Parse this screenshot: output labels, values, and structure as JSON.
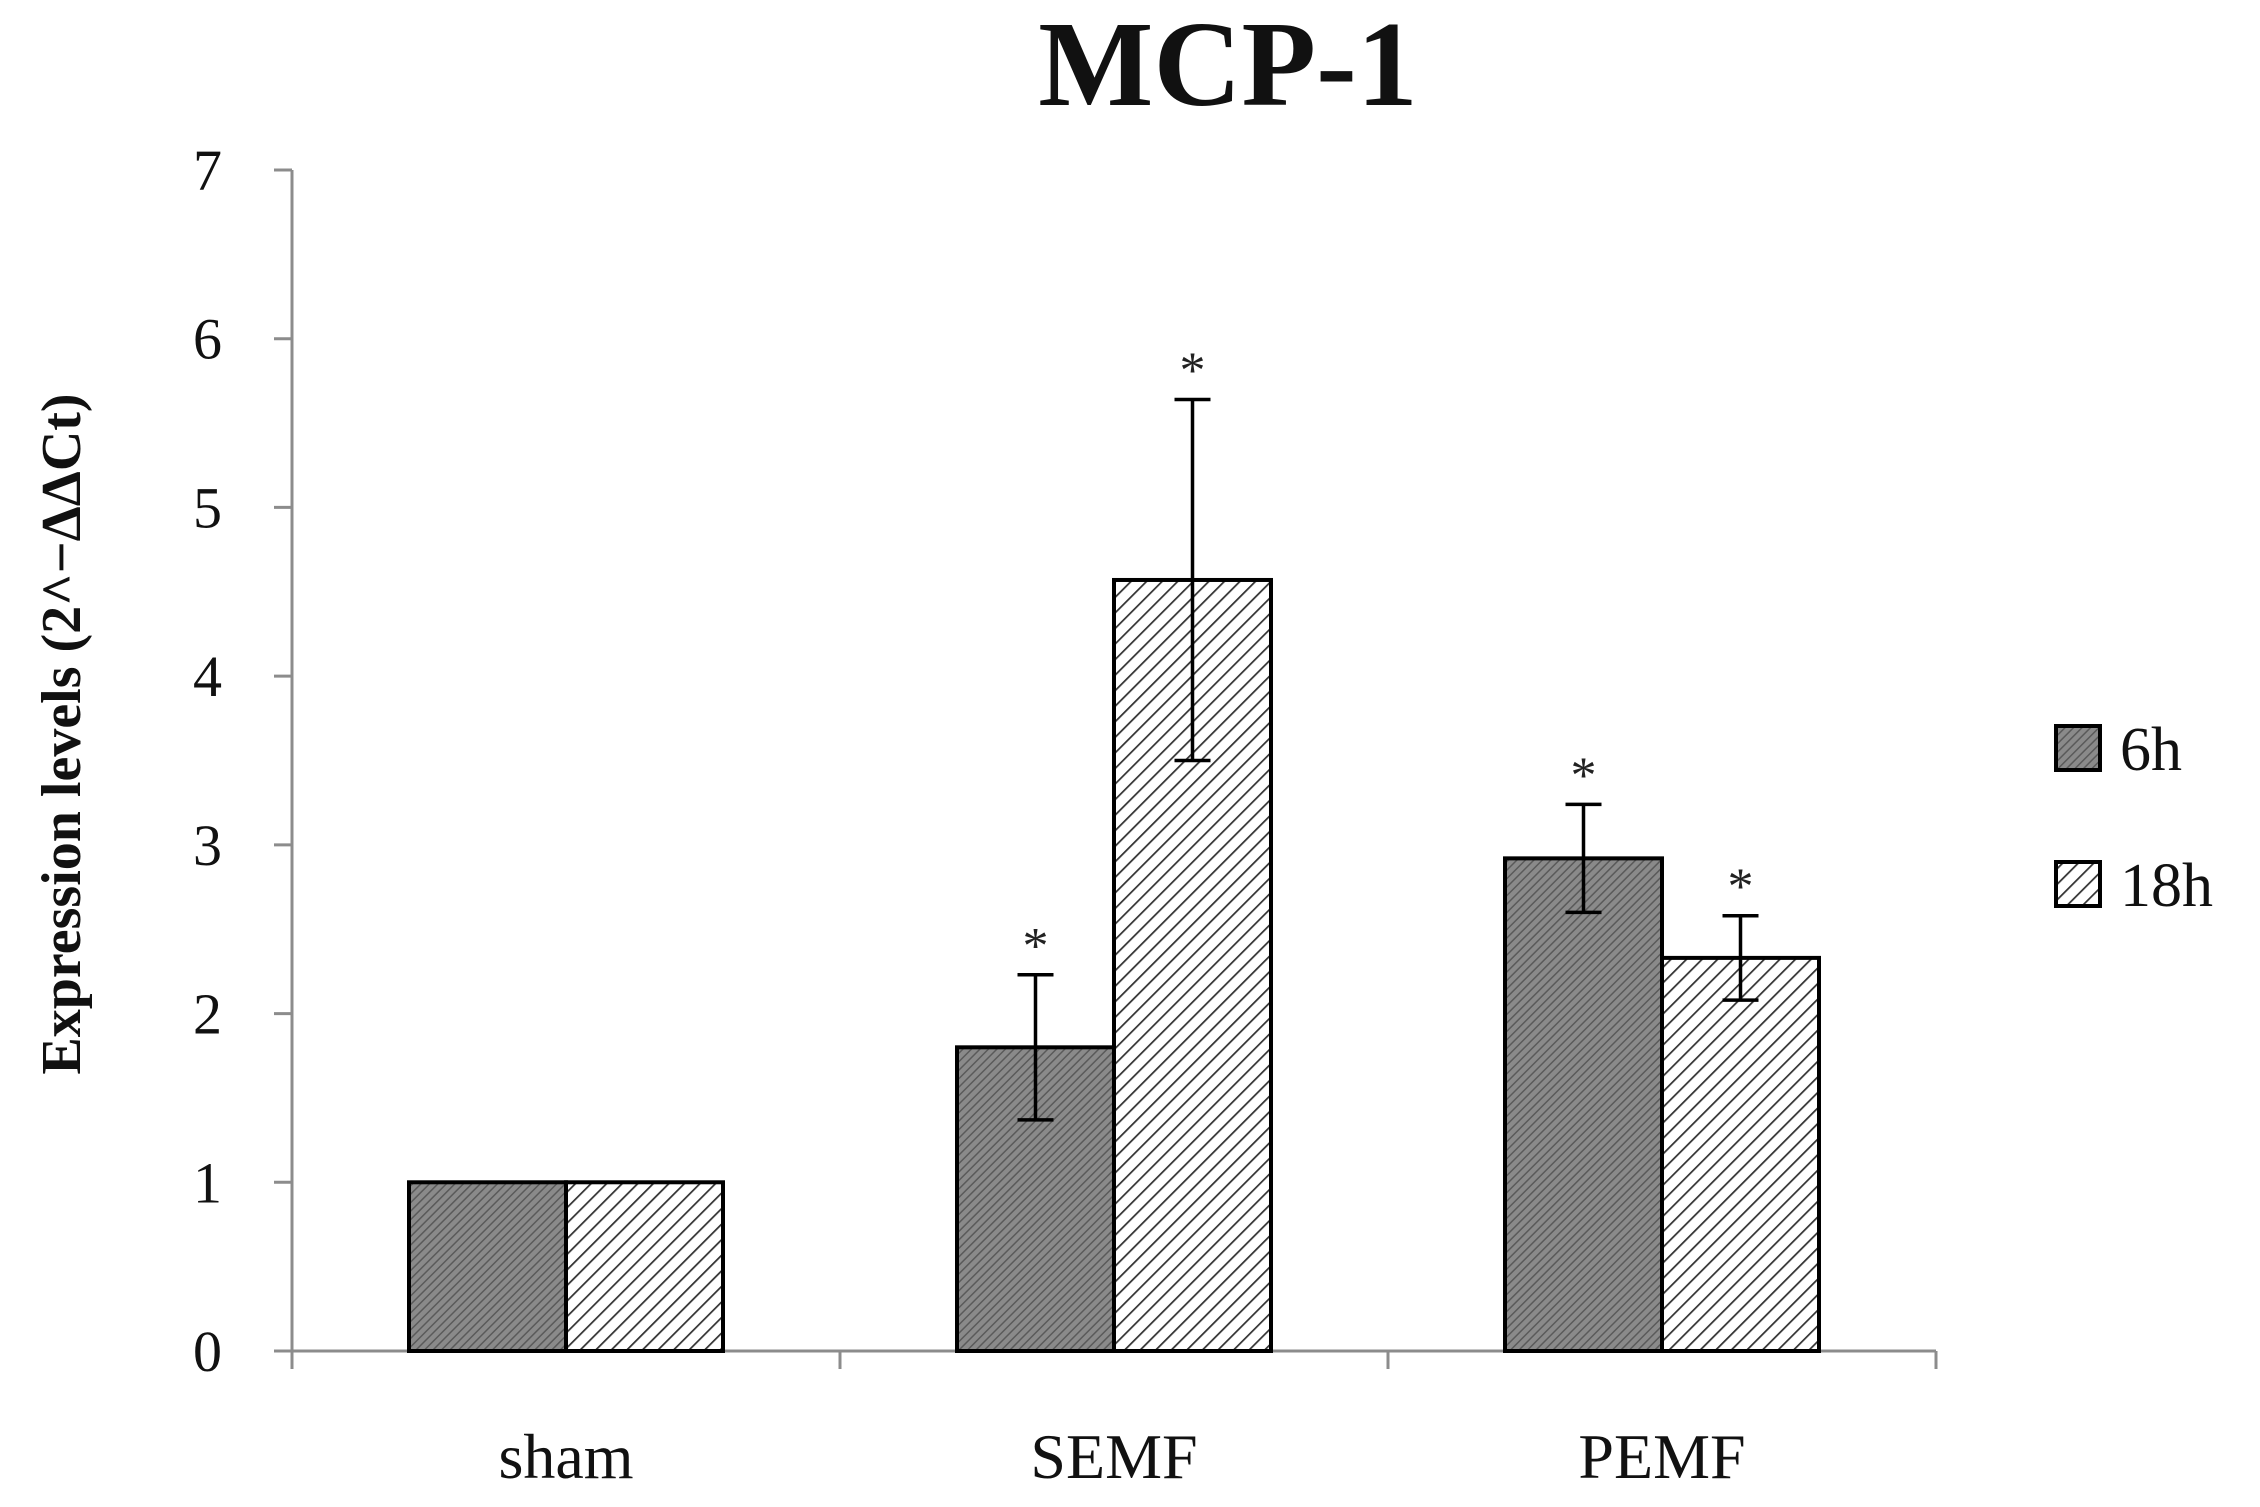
{
  "chart_data": {
    "type": "bar",
    "title": "MCP-1",
    "ylabel": "Expression levels (2^−ΔΔCt)",
    "xlabel": "",
    "categories": [
      "sham",
      "SEMF",
      "PEMF"
    ],
    "ylim": [
      0,
      7
    ],
    "yticks": [
      "0",
      "1",
      "2",
      "3",
      "4",
      "5",
      "6",
      "7"
    ],
    "grid": false,
    "legend_position": "right",
    "series": [
      {
        "name": "6h",
        "pattern": "dense-diagonal-gray",
        "color": "#808080",
        "values": [
          1.0,
          1.8,
          2.92
        ],
        "error": [
          null,
          0.43,
          0.32
        ],
        "significance": [
          "",
          "*",
          "*"
        ]
      },
      {
        "name": "18h",
        "pattern": "diagonal-hatch",
        "color": "#ffffff",
        "values": [
          1.0,
          4.57,
          2.33
        ],
        "error": [
          null,
          1.07,
          0.25
        ],
        "significance": [
          "",
          "*",
          "*"
        ]
      }
    ]
  }
}
